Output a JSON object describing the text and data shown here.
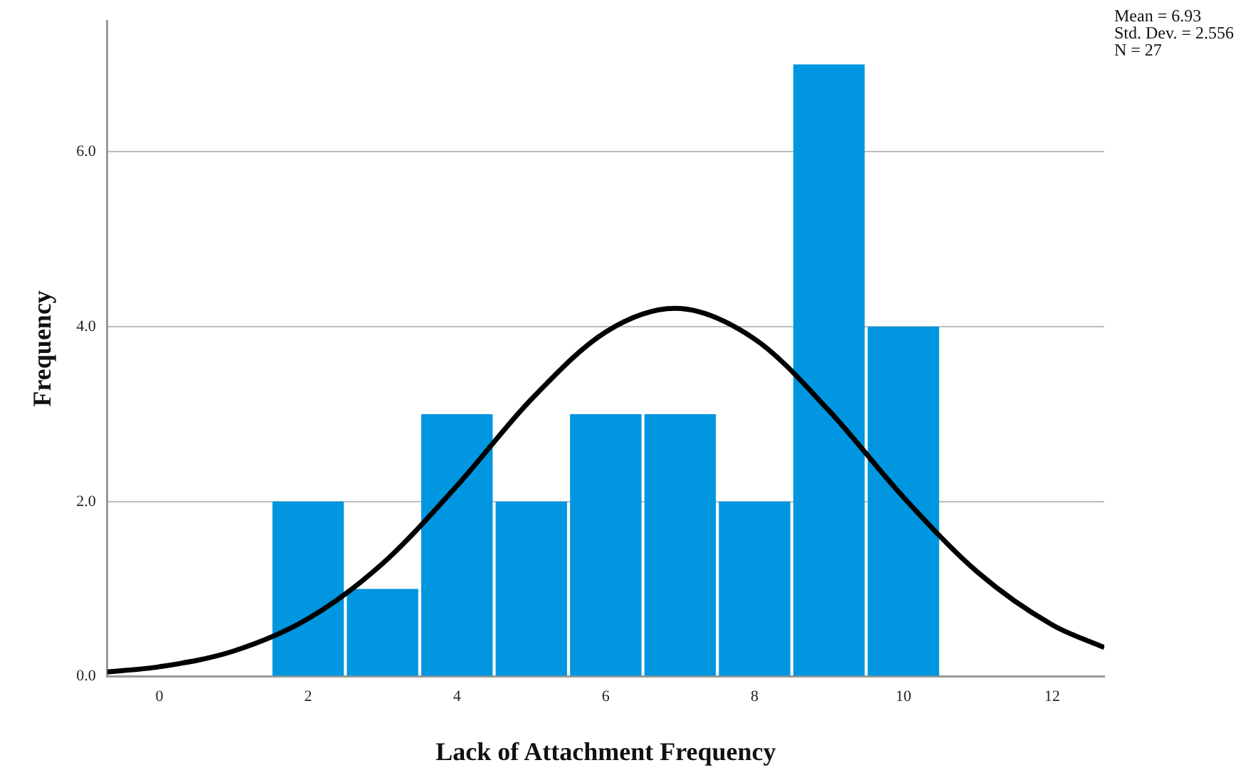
{
  "chart_data": {
    "type": "histogram",
    "xlabel": "Lack of Attachment Frequency",
    "ylabel": "Frequency",
    "bins": [
      1.5,
      2.5,
      3.5,
      4.5,
      5.5,
      6.5,
      7.5,
      8.5,
      9.5,
      10.5
    ],
    "values": [
      2,
      1,
      3,
      2,
      3,
      3,
      2,
      7,
      4
    ],
    "color": "#0096e0",
    "series": [
      {
        "type": "line",
        "color": "#000000",
        "x": [
          -0.7,
          0,
          1,
          2,
          3,
          4,
          5,
          6,
          6.93,
          8,
          9,
          10,
          11,
          12,
          12.7
        ],
        "values": [
          0.05,
          0.11,
          0.29,
          0.66,
          1.29,
          2.18,
          3.17,
          3.94,
          4.21,
          3.86,
          3.04,
          2.05,
          1.19,
          0.59,
          0.33
        ]
      }
    ],
    "xlim": [
      -0.7,
      12.7
    ],
    "xticks": [
      0,
      2,
      4,
      6,
      8,
      10,
      12
    ],
    "ylim": [
      0,
      7.5
    ],
    "yticks": [
      {
        "value": 0,
        "label": "0.0"
      },
      {
        "value": 2,
        "label": "2.0"
      },
      {
        "value": 4,
        "label": "4.0"
      },
      {
        "value": 6,
        "label": "6.0"
      }
    ],
    "grid": "y",
    "legend": false,
    "marker": "none",
    "annotations": [
      "Mean = 6.93",
      "Std. Dev. = 2.556",
      "N = 27"
    ]
  }
}
